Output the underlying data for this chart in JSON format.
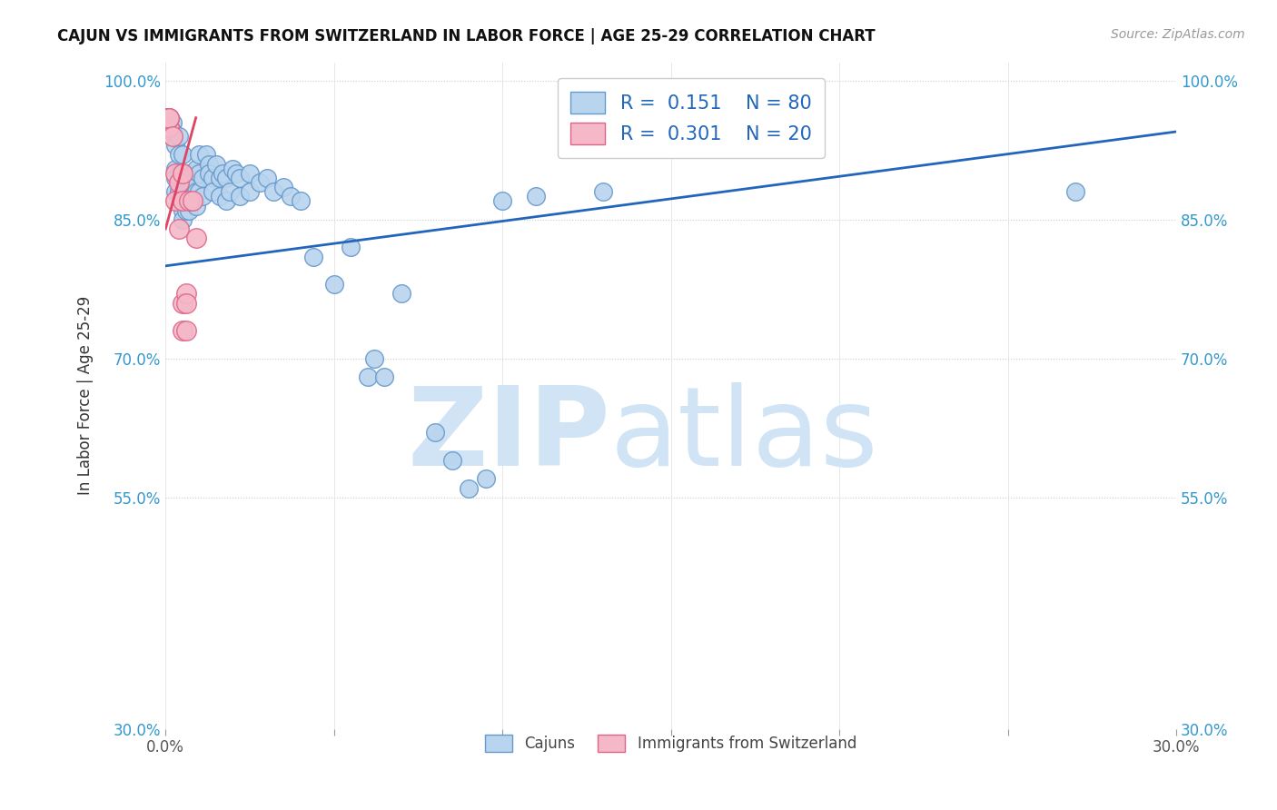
{
  "title": "CAJUN VS IMMIGRANTS FROM SWITZERLAND IN LABOR FORCE | AGE 25-29 CORRELATION CHART",
  "source": "Source: ZipAtlas.com",
  "ylabel": "In Labor Force | Age 25-29",
  "x_min": 0.0,
  "x_max": 0.3,
  "y_min": 0.3,
  "y_max": 1.02,
  "x_ticks": [
    0.0,
    0.05,
    0.1,
    0.15,
    0.2,
    0.25,
    0.3
  ],
  "y_ticks": [
    0.3,
    0.55,
    0.7,
    0.85,
    1.0
  ],
  "y_tick_labels": [
    "30.0%",
    "55.0%",
    "70.0%",
    "85.0%",
    "100.0%"
  ],
  "legend_r1": "R =  0.151",
  "legend_n1": "N = 80",
  "legend_r2": "R =  0.301",
  "legend_n2": "N = 20",
  "cajun_color": "#b8d4ee",
  "swiss_color": "#f5b8c8",
  "cajun_edge_color": "#6699cc",
  "swiss_edge_color": "#dd6688",
  "line_blue": "#2266bb",
  "line_pink": "#dd4466",
  "watermark_zip": "ZIP",
  "watermark_atlas": "atlas",
  "watermark_color": "#d0e4f5",
  "cajun_scatter": [
    [
      0.0,
      0.96
    ],
    [
      0.001,
      0.96
    ],
    [
      0.001,
      0.96
    ],
    [
      0.001,
      0.95
    ],
    [
      0.002,
      0.955
    ],
    [
      0.002,
      0.945
    ],
    [
      0.003,
      0.93
    ],
    [
      0.003,
      0.905
    ],
    [
      0.003,
      0.895
    ],
    [
      0.003,
      0.88
    ],
    [
      0.004,
      0.94
    ],
    [
      0.004,
      0.92
    ],
    [
      0.004,
      0.9
    ],
    [
      0.004,
      0.89
    ],
    [
      0.004,
      0.88
    ],
    [
      0.005,
      0.92
    ],
    [
      0.005,
      0.9
    ],
    [
      0.005,
      0.89
    ],
    [
      0.005,
      0.88
    ],
    [
      0.005,
      0.87
    ],
    [
      0.005,
      0.86
    ],
    [
      0.005,
      0.85
    ],
    [
      0.006,
      0.9
    ],
    [
      0.006,
      0.89
    ],
    [
      0.006,
      0.88
    ],
    [
      0.006,
      0.87
    ],
    [
      0.006,
      0.86
    ],
    [
      0.007,
      0.89
    ],
    [
      0.007,
      0.875
    ],
    [
      0.007,
      0.86
    ],
    [
      0.008,
      0.9
    ],
    [
      0.008,
      0.89
    ],
    [
      0.008,
      0.875
    ],
    [
      0.009,
      0.905
    ],
    [
      0.009,
      0.88
    ],
    [
      0.009,
      0.865
    ],
    [
      0.01,
      0.92
    ],
    [
      0.01,
      0.9
    ],
    [
      0.01,
      0.88
    ],
    [
      0.011,
      0.895
    ],
    [
      0.011,
      0.875
    ],
    [
      0.012,
      0.92
    ],
    [
      0.013,
      0.91
    ],
    [
      0.013,
      0.9
    ],
    [
      0.014,
      0.895
    ],
    [
      0.014,
      0.88
    ],
    [
      0.015,
      0.91
    ],
    [
      0.016,
      0.895
    ],
    [
      0.016,
      0.875
    ],
    [
      0.017,
      0.9
    ],
    [
      0.018,
      0.895
    ],
    [
      0.018,
      0.87
    ],
    [
      0.019,
      0.88
    ],
    [
      0.02,
      0.905
    ],
    [
      0.021,
      0.9
    ],
    [
      0.022,
      0.895
    ],
    [
      0.022,
      0.875
    ],
    [
      0.025,
      0.9
    ],
    [
      0.025,
      0.88
    ],
    [
      0.028,
      0.89
    ],
    [
      0.03,
      0.895
    ],
    [
      0.032,
      0.88
    ],
    [
      0.035,
      0.885
    ],
    [
      0.037,
      0.875
    ],
    [
      0.04,
      0.87
    ],
    [
      0.044,
      0.81
    ],
    [
      0.05,
      0.78
    ],
    [
      0.055,
      0.82
    ],
    [
      0.06,
      0.68
    ],
    [
      0.062,
      0.7
    ],
    [
      0.065,
      0.68
    ],
    [
      0.07,
      0.77
    ],
    [
      0.08,
      0.62
    ],
    [
      0.085,
      0.59
    ],
    [
      0.09,
      0.56
    ],
    [
      0.095,
      0.57
    ],
    [
      0.1,
      0.87
    ],
    [
      0.11,
      0.875
    ],
    [
      0.13,
      0.88
    ],
    [
      0.27,
      0.88
    ]
  ],
  "swiss_scatter": [
    [
      0.0,
      0.96
    ],
    [
      0.001,
      0.96
    ],
    [
      0.001,
      0.95
    ],
    [
      0.001,
      0.96
    ],
    [
      0.001,
      0.96
    ],
    [
      0.002,
      0.94
    ],
    [
      0.003,
      0.9
    ],
    [
      0.003,
      0.87
    ],
    [
      0.004,
      0.89
    ],
    [
      0.004,
      0.84
    ],
    [
      0.005,
      0.9
    ],
    [
      0.005,
      0.87
    ],
    [
      0.005,
      0.76
    ],
    [
      0.005,
      0.73
    ],
    [
      0.006,
      0.77
    ],
    [
      0.006,
      0.73
    ],
    [
      0.006,
      0.76
    ],
    [
      0.007,
      0.87
    ],
    [
      0.008,
      0.87
    ],
    [
      0.009,
      0.83
    ]
  ],
  "blue_line_x": [
    0.0,
    0.3
  ],
  "blue_line_y": [
    0.8,
    0.945
  ],
  "pink_line_x": [
    0.0,
    0.009
  ],
  "pink_line_y": [
    0.84,
    0.96
  ]
}
